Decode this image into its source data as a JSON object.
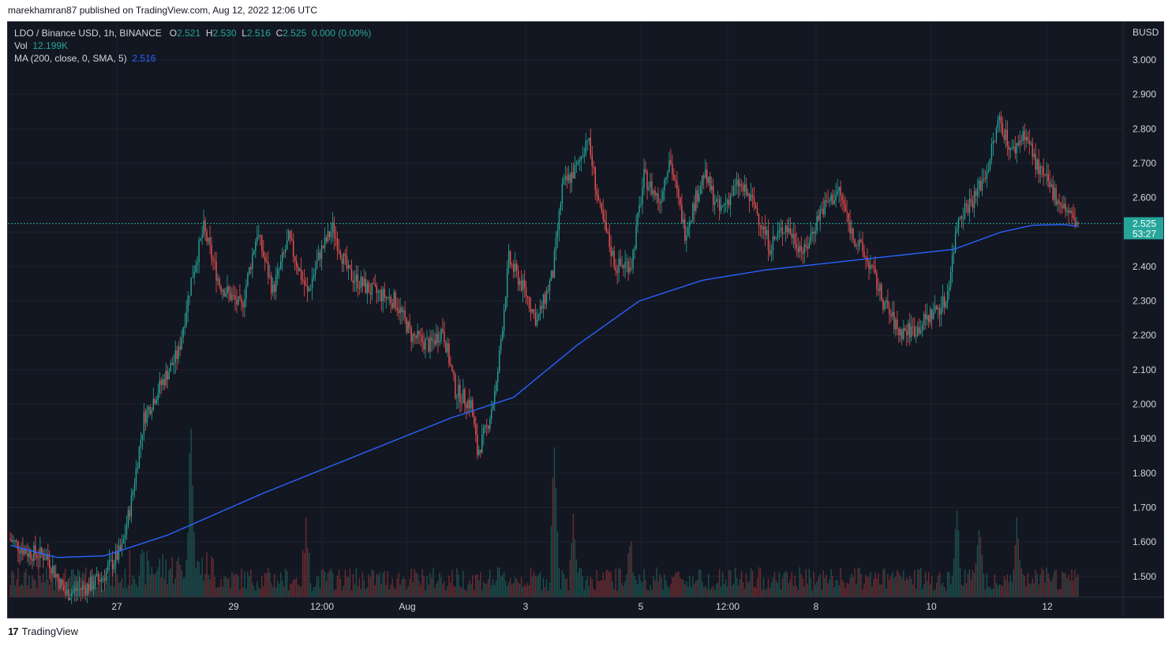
{
  "header": {
    "published_text": "marekhamran87 published on TradingView.com, Aug 12, 2022 12:06 UTC"
  },
  "footer": {
    "brand": "TradingView",
    "logo_glyph": "17"
  },
  "legend": {
    "symbol": "LDO / Binance USD, 1h, BINANCE",
    "open_label": "O",
    "open": "2.521",
    "high_label": "H",
    "high": "2.530",
    "low_label": "L",
    "low": "2.516",
    "close_label": "C",
    "close": "2.525",
    "change": "0.000 (0.00%)",
    "vol_label": "Vol",
    "vol": "12.199K",
    "ma_label": "MA (200, close, 0, SMA, 5)",
    "ma_value": "2.516"
  },
  "axis": {
    "currency": "BUSD",
    "last_price": "2.525",
    "countdown": "53:27"
  },
  "colors": {
    "background": "#131722",
    "up": "#26a69a",
    "down": "#ef5350",
    "ma": "#2962ff",
    "grid": "#1e222d",
    "text": "#d1d4dc"
  },
  "chart_data": {
    "type": "candlestick",
    "title": "LDO / Binance USD, 1h, BINANCE",
    "ylim": [
      1.44,
      3.11
    ],
    "y_ticks": [
      "1.500",
      "1.600",
      "1.700",
      "1.800",
      "1.900",
      "2.000",
      "2.100",
      "2.200",
      "2.300",
      "2.400",
      "2.500",
      "2.600",
      "2.700",
      "2.800",
      "2.900",
      "3.000"
    ],
    "x_ticks": [
      "27",
      "29",
      "12:00",
      "Aug",
      "3",
      "5",
      "12:00",
      "8",
      "10",
      "12"
    ],
    "price_anchors": [
      [
        0,
        1.61
      ],
      [
        12,
        1.57
      ],
      [
        24,
        1.56
      ],
      [
        36,
        1.45
      ],
      [
        50,
        1.47
      ],
      [
        60,
        1.5
      ],
      [
        72,
        1.58
      ],
      [
        78,
        1.72
      ],
      [
        86,
        1.96
      ],
      [
        96,
        2.05
      ],
      [
        108,
        2.15
      ],
      [
        116,
        2.36
      ],
      [
        124,
        2.51
      ],
      [
        134,
        2.35
      ],
      [
        148,
        2.28
      ],
      [
        158,
        2.5
      ],
      [
        168,
        2.33
      ],
      [
        178,
        2.48
      ],
      [
        190,
        2.32
      ],
      [
        198,
        2.44
      ],
      [
        206,
        2.51
      ],
      [
        216,
        2.38
      ],
      [
        230,
        2.33
      ],
      [
        246,
        2.3
      ],
      [
        256,
        2.2
      ],
      [
        268,
        2.17
      ],
      [
        276,
        2.22
      ],
      [
        284,
        2.04
      ],
      [
        294,
        2.0
      ],
      [
        298,
        1.86
      ],
      [
        304,
        1.93
      ],
      [
        310,
        2.05
      ],
      [
        318,
        2.42
      ],
      [
        328,
        2.33
      ],
      [
        336,
        2.24
      ],
      [
        346,
        2.38
      ],
      [
        352,
        2.63
      ],
      [
        362,
        2.69
      ],
      [
        368,
        2.78
      ],
      [
        376,
        2.56
      ],
      [
        386,
        2.4
      ],
      [
        396,
        2.41
      ],
      [
        404,
        2.66
      ],
      [
        414,
        2.59
      ],
      [
        420,
        2.72
      ],
      [
        430,
        2.5
      ],
      [
        442,
        2.67
      ],
      [
        452,
        2.56
      ],
      [
        464,
        2.64
      ],
      [
        474,
        2.58
      ],
      [
        484,
        2.46
      ],
      [
        494,
        2.52
      ],
      [
        506,
        2.44
      ],
      [
        516,
        2.56
      ],
      [
        528,
        2.62
      ],
      [
        536,
        2.5
      ],
      [
        548,
        2.4
      ],
      [
        556,
        2.3
      ],
      [
        566,
        2.21
      ],
      [
        578,
        2.22
      ],
      [
        586,
        2.26
      ],
      [
        596,
        2.3
      ],
      [
        604,
        2.55
      ],
      [
        614,
        2.6
      ],
      [
        622,
        2.68
      ],
      [
        630,
        2.83
      ],
      [
        638,
        2.73
      ],
      [
        646,
        2.79
      ],
      [
        654,
        2.69
      ],
      [
        662,
        2.63
      ],
      [
        670,
        2.58
      ],
      [
        678,
        2.53
      ],
      [
        679,
        2.525
      ]
    ],
    "ma_anchors": [
      [
        0,
        1.59
      ],
      [
        30,
        1.555
      ],
      [
        60,
        1.56
      ],
      [
        100,
        1.62
      ],
      [
        160,
        1.74
      ],
      [
        220,
        1.85
      ],
      [
        280,
        1.96
      ],
      [
        320,
        2.02
      ],
      [
        360,
        2.17
      ],
      [
        400,
        2.3
      ],
      [
        440,
        2.36
      ],
      [
        480,
        2.39
      ],
      [
        520,
        2.41
      ],
      [
        560,
        2.43
      ],
      [
        600,
        2.45
      ],
      [
        630,
        2.5
      ],
      [
        650,
        2.52
      ],
      [
        670,
        2.522
      ],
      [
        679,
        2.516
      ]
    ],
    "volume_spikes": [
      [
        115,
        1.0
      ],
      [
        188,
        0.55
      ],
      [
        346,
        1.5
      ],
      [
        358,
        0.7
      ],
      [
        394,
        0.45
      ],
      [
        602,
        0.7
      ],
      [
        616,
        0.6
      ],
      [
        640,
        0.55
      ]
    ],
    "num_candles": 680,
    "last_close": 2.525,
    "ma_last": 2.516
  }
}
